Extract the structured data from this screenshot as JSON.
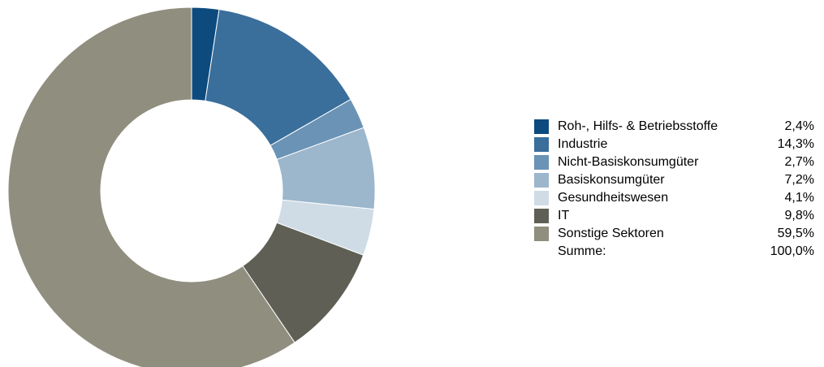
{
  "chart_data": {
    "type": "pie",
    "donut": true,
    "categories": [
      "Roh-, Hilfs- & Betriebsstoffe",
      "Industrie",
      "Nicht-Basiskonsumgüter",
      "Basiskonsumgüter",
      "Gesundheitswesen",
      "IT",
      "Sonstige Sektoren"
    ],
    "values": [
      2.4,
      14.3,
      2.7,
      7.2,
      4.1,
      9.8,
      59.5
    ],
    "value_labels": [
      "2,4%",
      "14,3%",
      "2,7%",
      "7,2%",
      "4,1%",
      "9,8%",
      "59,5%"
    ],
    "colors": [
      "#0d4a7e",
      "#3a6e9b",
      "#6a93b6",
      "#9cb6cc",
      "#cfdce6",
      "#5f5f55",
      "#908e7e"
    ],
    "legend_position": "right",
    "total_label": "Summe:",
    "total_value": "100,0%"
  }
}
